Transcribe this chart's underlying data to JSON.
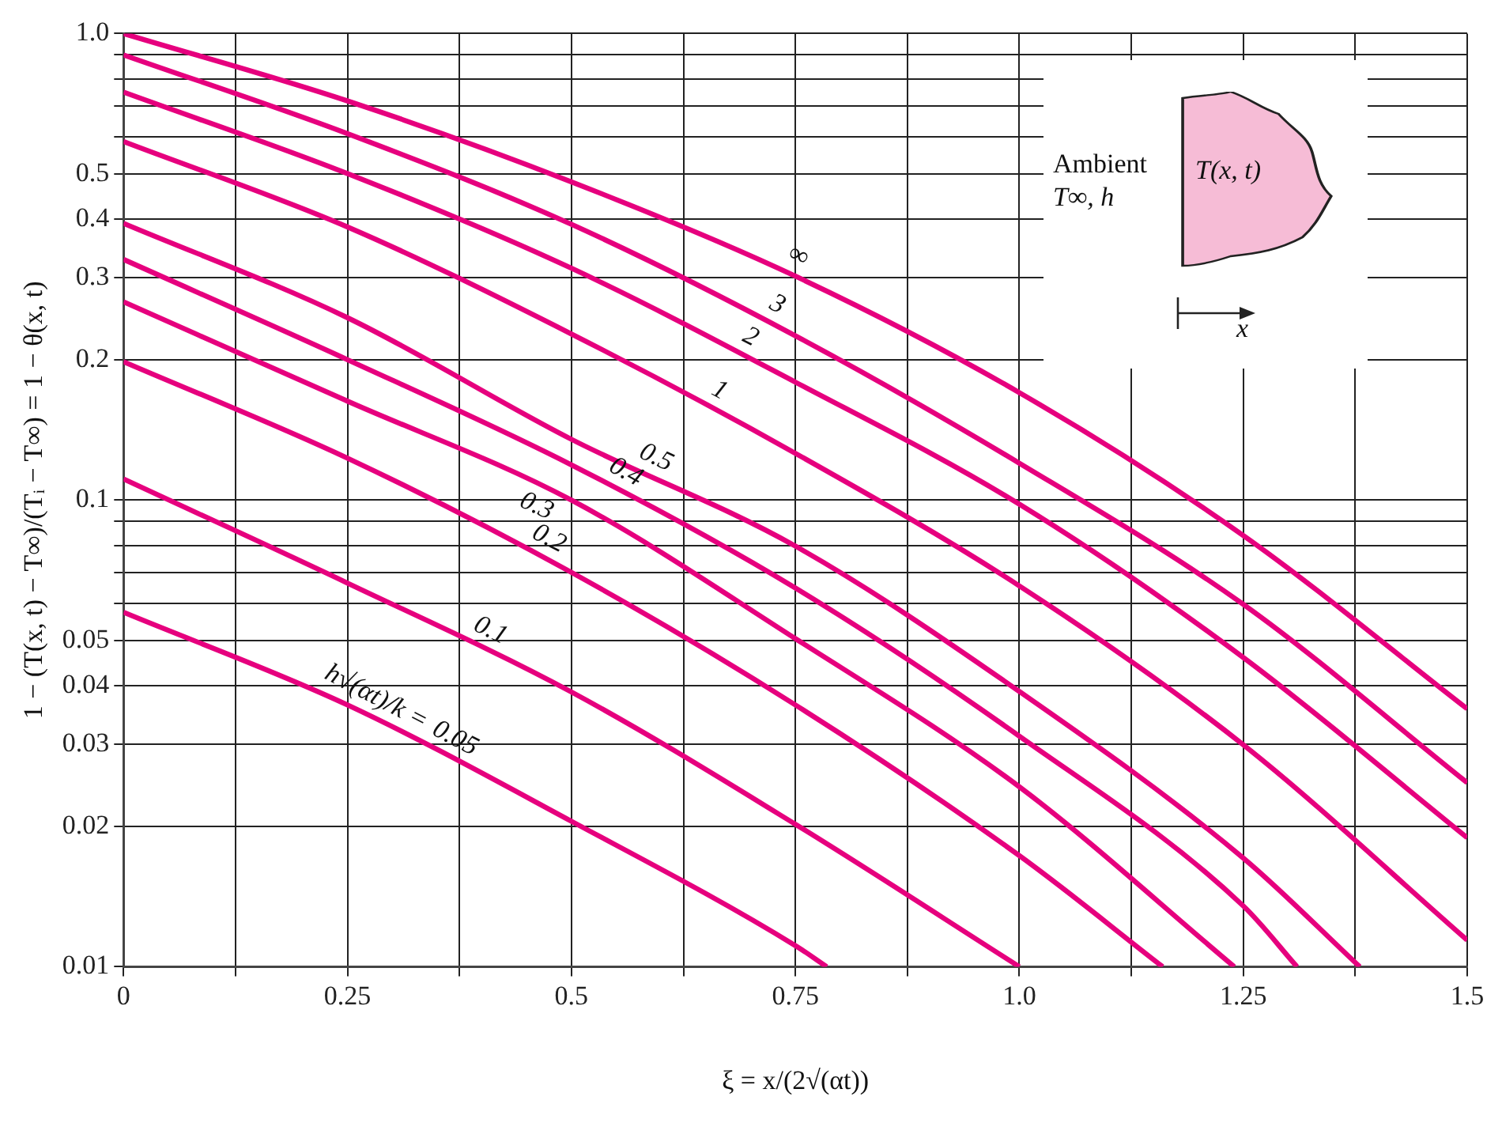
{
  "chart_data": {
    "type": "line",
    "xlabel": "ξ = x/(2√(αt))",
    "ylabel": "1 − (T(x, t) − T∞)/(Tᵢ − T∞) = 1 − θ(x, t)",
    "legend_title": "h√(αt)/k =",
    "annotations": [
      "Ambient",
      "T∞, h",
      "T(x, t)",
      "x"
    ],
    "log": "y",
    "grid": true,
    "marker": "none",
    "line_style": "solid",
    "xlim": [
      0,
      1.5
    ],
    "ylim": [
      0.01,
      1
    ],
    "xticks": [
      0,
      {
        "value": 0.125,
        "label": null
      },
      0.25,
      {
        "value": 0.375,
        "label": null
      },
      0.5,
      {
        "value": 0.625,
        "label": null
      },
      0.75,
      {
        "value": 0.875,
        "label": null
      },
      {
        "value": 1,
        "label": "1.0"
      },
      {
        "value": 1.125,
        "label": null
      },
      1.25,
      {
        "value": 1.375,
        "label": null
      },
      1.5
    ],
    "yticks": [
      0.01,
      0.02,
      0.03,
      0.04,
      0.05,
      {
        "value": 0.06,
        "label": null
      },
      {
        "value": 0.07,
        "label": null
      },
      {
        "value": 0.08,
        "label": null
      },
      {
        "value": 0.09,
        "label": null
      },
      0.1,
      0.2,
      0.3,
      0.4,
      0.5,
      {
        "value": 0.6,
        "label": null
      },
      {
        "value": 0.7,
        "label": null
      },
      {
        "value": 0.8,
        "label": null
      },
      {
        "value": 0.9,
        "label": null
      },
      {
        "value": 1,
        "label": "1.0"
      }
    ],
    "series": [
      {
        "name": "∞",
        "color": "#e6007e",
        "x": [
          0,
          0.25,
          0.5,
          0.75,
          1,
          1.25,
          1.5
        ],
        "values": [
          1.0,
          0.717,
          0.481,
          0.302,
          0.17,
          0.084,
          0.0357
        ]
      },
      {
        "name": "3",
        "color": "#e6007e",
        "x": [
          0,
          0.25,
          0.5,
          0.75,
          1,
          1.25,
          1.5
        ],
        "values": [
          0.9,
          0.61,
          0.39,
          0.225,
          0.12,
          0.0598,
          0.0248
        ]
      },
      {
        "name": "2",
        "color": "#e6007e",
        "x": [
          0,
          0.25,
          0.5,
          0.75,
          1,
          1.25,
          1.5
        ],
        "values": [
          0.749,
          0.501,
          0.314,
          0.179,
          0.098,
          0.046,
          0.0189
        ]
      },
      {
        "name": "1",
        "color": "#e6007e",
        "x": [
          0,
          0.25,
          0.5,
          0.75,
          1,
          1.25,
          1.5
        ],
        "values": [
          0.587,
          0.385,
          0.227,
          0.126,
          0.0655,
          0.0299,
          0.0114
        ]
      },
      {
        "name": "0.5",
        "color": "#e6007e",
        "x": [
          0,
          0.25,
          0.5,
          0.75,
          1,
          1.25,
          1.38
        ],
        "values": [
          0.392,
          0.246,
          0.135,
          0.0797,
          0.0389,
          0.0171,
          0.01
        ]
      },
      {
        "name": "0.4",
        "color": "#e6007e",
        "x": [
          0,
          0.25,
          0.5,
          0.75,
          1,
          1.25,
          1.31
        ],
        "values": [
          0.328,
          0.2,
          0.119,
          0.0648,
          0.0312,
          0.0135,
          0.01
        ]
      },
      {
        "name": "0.3",
        "color": "#e6007e",
        "x": [
          0,
          0.25,
          0.5,
          0.75,
          1,
          1.24
        ],
        "values": [
          0.266,
          0.163,
          0.1,
          0.0505,
          0.0243,
          0.01
        ]
      },
      {
        "name": "0.2",
        "color": "#e6007e",
        "x": [
          0,
          0.25,
          0.5,
          0.75,
          1,
          1.16
        ],
        "values": [
          0.198,
          0.123,
          0.07,
          0.0364,
          0.0173,
          0.01
        ]
      },
      {
        "name": "0.1",
        "color": "#e6007e",
        "x": [
          0,
          0.25,
          0.5,
          0.75,
          1
        ],
        "values": [
          0.111,
          0.0664,
          0.0388,
          0.0202,
          0.01
        ]
      },
      {
        "name": "0.05",
        "color": "#e6007e",
        "x": [
          0,
          0.25,
          0.5,
          0.75,
          0.785
        ],
        "values": [
          0.0575,
          0.0364,
          0.0205,
          0.0111,
          0.01
        ]
      }
    ]
  }
}
